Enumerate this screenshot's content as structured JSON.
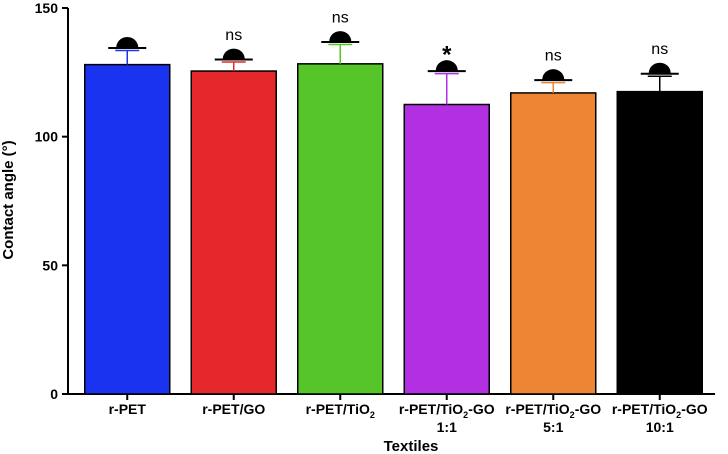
{
  "chart_data": {
    "type": "bar",
    "xlabel": "Textiles",
    "ylabel": "Contact angle (°)",
    "ylim": [
      0,
      150
    ],
    "yticks": [
      0,
      50,
      100,
      150
    ],
    "categories": [
      {
        "line1_main": "r-PET",
        "line1_sub": "",
        "line1_rest": "",
        "line2": ""
      },
      {
        "line1_main": "r-PET/GO",
        "line1_sub": "",
        "line1_rest": "",
        "line2": ""
      },
      {
        "line1_main": "r-PET/TiO",
        "line1_sub": "2",
        "line1_rest": "",
        "line2": ""
      },
      {
        "line1_main": "r-PET/TiO",
        "line1_sub": "2",
        "line1_rest": "-GO",
        "line2": "1:1"
      },
      {
        "line1_main": "r-PET/TiO",
        "line1_sub": "2",
        "line1_rest": "-GO",
        "line2": "5:1"
      },
      {
        "line1_main": "r-PET/TiO",
        "line1_sub": "2",
        "line1_rest": "-GO",
        "line2": "10:1"
      }
    ],
    "values": [
      128,
      125.5,
      128.3,
      112.5,
      117,
      117.5
    ],
    "errors": [
      5.5,
      3.5,
      7.5,
      12,
      4,
      6
    ],
    "colors": [
      "#1a33f0",
      "#e4282c",
      "#55c52a",
      "#b22fe2",
      "#ec8534",
      "#000000"
    ],
    "annotations": [
      "",
      "ns",
      "ns",
      "*",
      "ns",
      "ns"
    ],
    "droplet_icon": "contact-angle-droplet-icon"
  }
}
